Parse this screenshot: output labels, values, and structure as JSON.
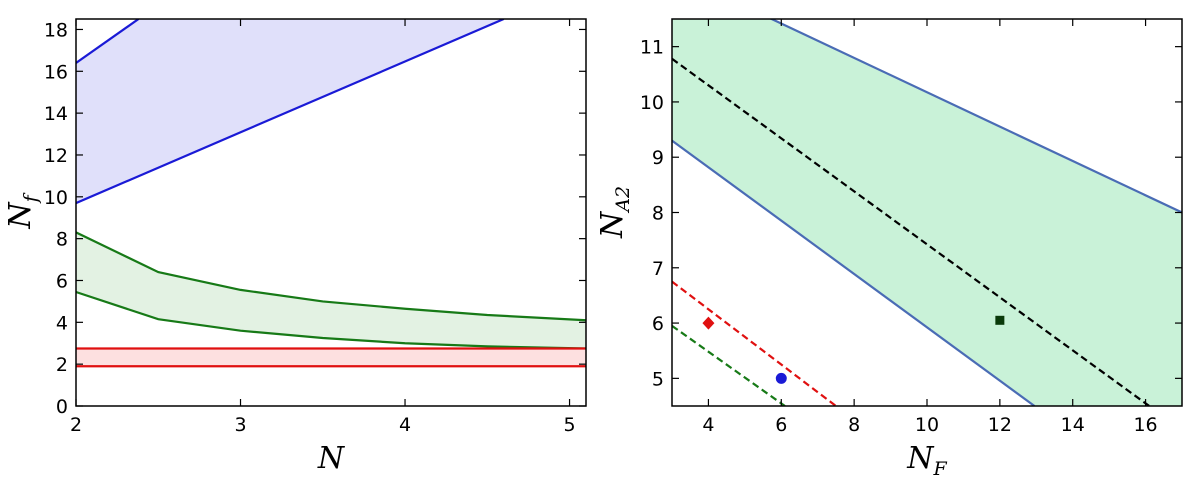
{
  "chart_data": [
    {
      "type": "area",
      "title": "",
      "xlabel": {
        "main": "N",
        "sub": ""
      },
      "ylabel": {
        "main": "N",
        "sub": "f"
      },
      "xlim": [
        2,
        5.1
      ],
      "ylim": [
        0,
        18.5
      ],
      "xticks": [
        "2",
        "3",
        "4",
        "5"
      ],
      "yticks": [
        "0",
        "2",
        "4",
        "6",
        "8",
        "10",
        "12",
        "14",
        "16",
        "18"
      ],
      "grid": false,
      "colors": {
        "blue": "#1a1ad6",
        "blue_fill": "#e0e0fa",
        "green": "#177a17",
        "green_fill": "#e3f2e3",
        "red": "#e01010",
        "red_fill": "#fde0e0"
      },
      "bands": [
        {
          "color": "blue",
          "lower": [
            [
              2,
              9.7
            ],
            [
              4.6,
              18.5
            ]
          ],
          "upper": [
            [
              2,
              16.4
            ],
            [
              2.38,
              18.5
            ]
          ]
        },
        {
          "color": "green",
          "lower": [
            [
              2,
              5.45
            ],
            [
              2.5,
              4.15
            ],
            [
              3,
              3.6
            ],
            [
              3.5,
              3.25
            ],
            [
              4,
              3.0
            ],
            [
              4.5,
              2.85
            ],
            [
              5.1,
              2.75
            ]
          ],
          "upper": [
            [
              2,
              8.3
            ],
            [
              2.5,
              6.4
            ],
            [
              3,
              5.55
            ],
            [
              3.5,
              5.0
            ],
            [
              4,
              4.65
            ],
            [
              4.5,
              4.35
            ],
            [
              5.1,
              4.1
            ]
          ]
        },
        {
          "color": "red",
          "lower": [
            [
              2,
              1.9
            ],
            [
              5.1,
              1.9
            ]
          ],
          "upper": [
            [
              2,
              2.75
            ],
            [
              5.1,
              2.75
            ]
          ]
        }
      ]
    },
    {
      "type": "line",
      "title": "",
      "xlabel": {
        "main": "N",
        "sub": "F"
      },
      "ylabel": {
        "main": "N",
        "sub": "A2"
      },
      "xlim": [
        3,
        17
      ],
      "ylim": [
        4.5,
        11.5
      ],
      "xticks": [
        "4",
        "6",
        "8",
        "10",
        "12",
        "14",
        "16"
      ],
      "yticks": [
        "5",
        "6",
        "7",
        "8",
        "9",
        "10",
        "11"
      ],
      "grid": false,
      "colors": {
        "band_fill": "#c9f2d8",
        "band_edge": "#4a6cb5",
        "dash_black": "#000000",
        "dash_red": "#e01010",
        "dash_green": "#177a17",
        "marker_red": "#e01010",
        "marker_blue": "#1a1ad6",
        "marker_black": "#0a3a0a"
      },
      "band": {
        "lower": [
          [
            3,
            9.3
          ],
          [
            12.95,
            4.5
          ]
        ],
        "upper": [
          [
            3,
            12.35
          ],
          [
            17,
            8.0
          ]
        ]
      },
      "lines": [
        {
          "color": "dash_black",
          "points": [
            [
              3,
              10.78
            ],
            [
              16.1,
              4.5
            ]
          ]
        },
        {
          "color": "dash_red",
          "points": [
            [
              3,
              6.75
            ],
            [
              7.5,
              4.5
            ]
          ]
        },
        {
          "color": "dash_green",
          "points": [
            [
              3,
              5.95
            ],
            [
              6.1,
              4.5
            ]
          ]
        }
      ],
      "markers": [
        {
          "shape": "diamond",
          "color": "marker_red",
          "x": 4,
          "y": 6.0
        },
        {
          "shape": "circle",
          "color": "marker_blue",
          "x": 6,
          "y": 5.0
        },
        {
          "shape": "square",
          "color": "marker_black",
          "x": 12,
          "y": 6.05
        }
      ]
    }
  ]
}
